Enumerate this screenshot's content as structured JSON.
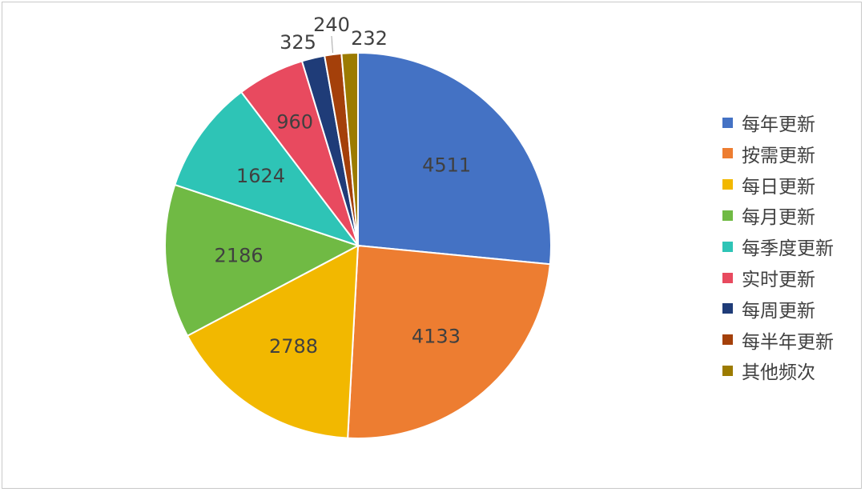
{
  "chart_data": {
    "type": "pie",
    "categories": [
      "每年更新",
      "按需更新",
      "每日更新",
      "每月更新",
      "每季度更新",
      "实时更新",
      "每周更新",
      "每半年更新",
      "其他频次"
    ],
    "values": [
      4511,
      4133,
      2788,
      2186,
      1624,
      960,
      325,
      240,
      232
    ],
    "colors": [
      "#4472c4",
      "#ed7d31",
      "#f2b800",
      "#70ba44",
      "#2ec4b6",
      "#e84a5f",
      "#1f3c78",
      "#a4400a",
      "#9c7b00"
    ],
    "legend_position": "right",
    "start_angle": "12 o'clock",
    "direction": "clockwise"
  }
}
